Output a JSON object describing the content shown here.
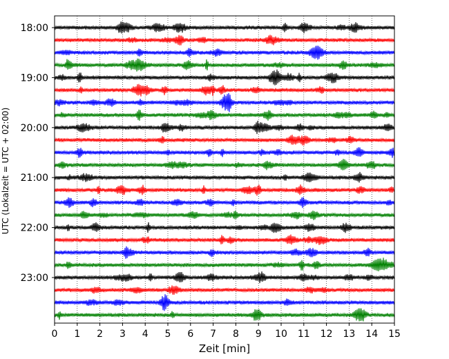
{
  "chart_data": {
    "type": "line",
    "title": "",
    "xlabel": "Zeit  [min]",
    "ylabel": "UTC (Lokalzeit = UTC + 02:00)",
    "xlim": [
      0,
      15
    ],
    "x_ticks": [
      0,
      1,
      2,
      3,
      4,
      5,
      6,
      7,
      8,
      9,
      10,
      11,
      12,
      13,
      14,
      15
    ],
    "x_grid": "dotted vertical lines at each minute",
    "row_interval_min": 15,
    "rows_start": "18:00",
    "rows_end": "23:45",
    "y_ticks": [
      "18:00",
      "19:00",
      "20:00",
      "21:00",
      "22:00",
      "23:00"
    ],
    "trace_color_cycle": [
      "#000000",
      "#ff0000",
      "#0000ff",
      "#008000"
    ],
    "traces": [
      {
        "start": "18:00",
        "color": "#000000"
      },
      {
        "start": "18:15",
        "color": "#ff0000"
      },
      {
        "start": "18:30",
        "color": "#0000ff"
      },
      {
        "start": "18:45",
        "color": "#008000"
      },
      {
        "start": "19:00",
        "color": "#000000"
      },
      {
        "start": "19:15",
        "color": "#ff0000"
      },
      {
        "start": "19:30",
        "color": "#0000ff"
      },
      {
        "start": "19:45",
        "color": "#008000"
      },
      {
        "start": "20:00",
        "color": "#000000"
      },
      {
        "start": "20:15",
        "color": "#ff0000"
      },
      {
        "start": "20:30",
        "color": "#0000ff"
      },
      {
        "start": "20:45",
        "color": "#008000"
      },
      {
        "start": "21:00",
        "color": "#000000"
      },
      {
        "start": "21:15",
        "color": "#ff0000"
      },
      {
        "start": "21:30",
        "color": "#0000ff"
      },
      {
        "start": "21:45",
        "color": "#008000"
      },
      {
        "start": "22:00",
        "color": "#000000"
      },
      {
        "start": "22:15",
        "color": "#ff0000"
      },
      {
        "start": "22:30",
        "color": "#0000ff"
      },
      {
        "start": "22:45",
        "color": "#008000"
      },
      {
        "start": "23:00",
        "color": "#000000"
      },
      {
        "start": "23:15",
        "color": "#ff0000"
      },
      {
        "start": "23:30",
        "color": "#0000ff"
      },
      {
        "start": "23:45",
        "color": "#008000"
      }
    ]
  }
}
